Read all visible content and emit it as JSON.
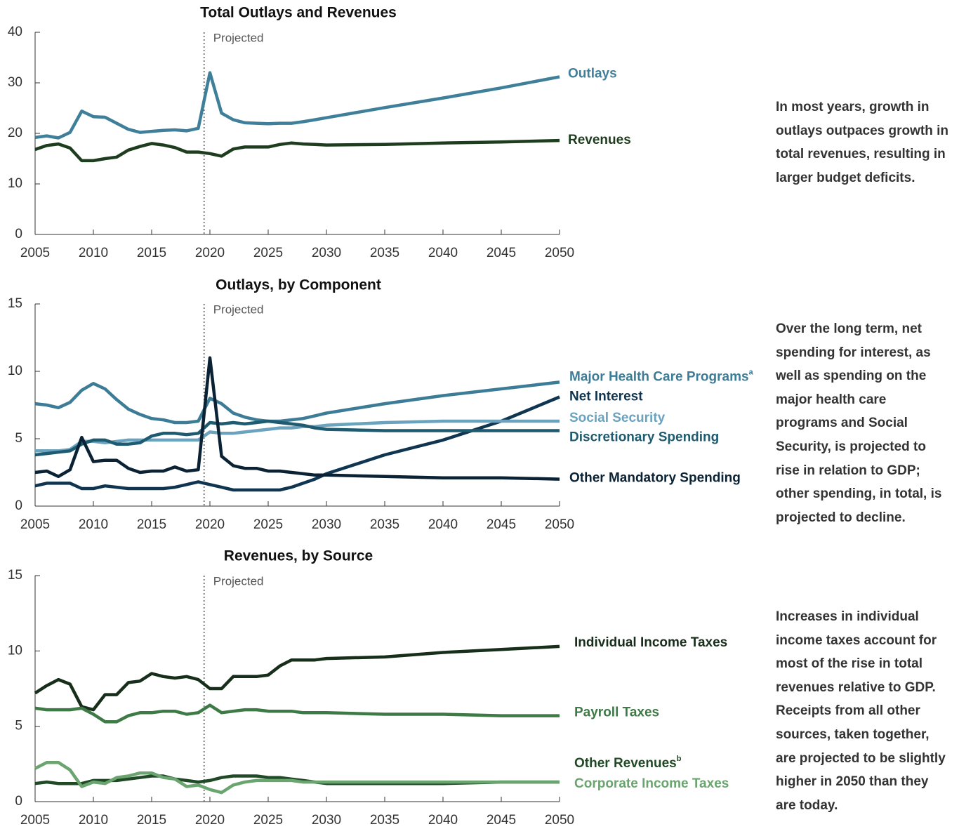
{
  "chart_data": [
    {
      "type": "line",
      "title": "Total Outlays and Revenues",
      "annotation": "Projected",
      "projected_x": 2019.5,
      "note": "In most years, growth in outlays outpaces growth in total revenues, resulting in larger budget deficits.",
      "x": [
        2005,
        2006,
        2007,
        2008,
        2009,
        2010,
        2011,
        2012,
        2013,
        2014,
        2015,
        2016,
        2017,
        2018,
        2019,
        2020,
        2021,
        2022,
        2023,
        2024,
        2025,
        2026,
        2027,
        2028,
        2029,
        2030,
        2035,
        2040,
        2045,
        2050
      ],
      "xlim": [
        2005,
        2050
      ],
      "xticks": [
        2005,
        2010,
        2015,
        2020,
        2025,
        2030,
        2035,
        2040,
        2045,
        2050
      ],
      "ylim": [
        0,
        40
      ],
      "yticks": [
        0,
        10,
        20,
        30,
        40
      ],
      "series": [
        {
          "name": "Outlays",
          "color": "#3f7f99",
          "values": [
            19.2,
            19.5,
            19.1,
            20.2,
            24.4,
            23.3,
            23.2,
            22.0,
            20.8,
            20.2,
            20.4,
            20.6,
            20.7,
            20.5,
            21.0,
            32.0,
            24.0,
            22.7,
            22.1,
            22.0,
            21.9,
            22.0,
            22.0,
            22.3,
            22.7,
            23.1,
            25.1,
            27.0,
            29.0,
            31.2
          ]
        },
        {
          "name": "Revenues",
          "color": "#1e3d1e",
          "values": [
            16.8,
            17.6,
            17.9,
            17.1,
            14.6,
            14.6,
            15.0,
            15.3,
            16.7,
            17.4,
            18.0,
            17.7,
            17.2,
            16.3,
            16.3,
            16.0,
            15.5,
            16.9,
            17.3,
            17.3,
            17.3,
            17.8,
            18.1,
            17.9,
            17.8,
            17.7,
            17.8,
            18.1,
            18.3,
            18.6
          ]
        }
      ]
    },
    {
      "type": "line",
      "title": "Outlays, by Component",
      "annotation": "Projected",
      "projected_x": 2019.5,
      "note": "Over the long term, net spending for interest, as well as spending on the major health care programs and Social Security, is projected to rise in relation to GDP; other spending, in total, is projected to decline.",
      "x": [
        2005,
        2006,
        2007,
        2008,
        2009,
        2010,
        2011,
        2012,
        2013,
        2014,
        2015,
        2016,
        2017,
        2018,
        2019,
        2020,
        2021,
        2022,
        2023,
        2024,
        2025,
        2026,
        2027,
        2028,
        2029,
        2030,
        2035,
        2040,
        2045,
        2050
      ],
      "xlim": [
        2005,
        2050
      ],
      "xticks": [
        2005,
        2010,
        2015,
        2020,
        2025,
        2030,
        2035,
        2040,
        2045,
        2050
      ],
      "ylim": [
        0,
        15
      ],
      "yticks": [
        0,
        5,
        10,
        15
      ],
      "series": [
        {
          "name": "Major Health Care Programs",
          "note_mark": "a",
          "color": "#3d7c96",
          "values": [
            7.6,
            7.5,
            7.3,
            7.7,
            8.6,
            9.1,
            8.7,
            7.9,
            7.2,
            6.8,
            6.5,
            6.4,
            6.2,
            6.2,
            6.3,
            8.0,
            7.6,
            6.9,
            6.6,
            6.4,
            6.3,
            6.3,
            6.4,
            6.5,
            6.7,
            6.9,
            7.6,
            8.2,
            8.7,
            9.2
          ]
        },
        {
          "name": "Net Interest",
          "color": "#0f3550",
          "values": [
            1.5,
            1.7,
            1.7,
            1.7,
            1.3,
            1.3,
            1.5,
            1.4,
            1.3,
            1.3,
            1.3,
            1.3,
            1.4,
            1.6,
            1.8,
            1.6,
            1.4,
            1.2,
            1.2,
            1.2,
            1.2,
            1.2,
            1.4,
            1.7,
            2.0,
            2.4,
            3.8,
            4.9,
            6.3,
            8.1
          ]
        },
        {
          "name": "Social Security",
          "color": "#6ba3bf",
          "values": [
            4.1,
            4.1,
            4.1,
            4.2,
            4.8,
            4.8,
            4.7,
            4.8,
            4.9,
            4.9,
            4.9,
            4.9,
            4.9,
            4.9,
            4.9,
            5.5,
            5.4,
            5.4,
            5.5,
            5.6,
            5.7,
            5.8,
            5.8,
            5.9,
            5.9,
            6.0,
            6.2,
            6.3,
            6.3,
            6.3
          ]
        },
        {
          "name": "Discretionary Spending",
          "color": "#1e5a70",
          "values": [
            3.8,
            3.9,
            4.0,
            4.1,
            4.6,
            4.9,
            4.9,
            4.6,
            4.6,
            4.7,
            5.2,
            5.4,
            5.4,
            5.3,
            5.4,
            6.2,
            6.1,
            6.2,
            6.1,
            6.2,
            6.3,
            6.2,
            6.1,
            6.0,
            5.8,
            5.7,
            5.6,
            5.6,
            5.6,
            5.6
          ]
        },
        {
          "name": "Other Mandatory Spending",
          "color": "#0a2233",
          "values": [
            2.5,
            2.6,
            2.2,
            2.7,
            5.1,
            3.3,
            3.4,
            3.4,
            2.8,
            2.5,
            2.6,
            2.6,
            2.9,
            2.6,
            2.7,
            11.0,
            3.7,
            3.0,
            2.8,
            2.8,
            2.6,
            2.6,
            2.5,
            2.4,
            2.3,
            2.3,
            2.2,
            2.1,
            2.1,
            2.0
          ]
        }
      ]
    },
    {
      "type": "line",
      "title": "Revenues, by Source",
      "annotation": "Projected",
      "projected_x": 2019.5,
      "note": "Increases in individual income taxes account for most of the rise in total revenues relative to GDP. Receipts from all other sources, taken together, are projected to be slightly higher in 2050 than they are today.",
      "x": [
        2005,
        2006,
        2007,
        2008,
        2009,
        2010,
        2011,
        2012,
        2013,
        2014,
        2015,
        2016,
        2017,
        2018,
        2019,
        2020,
        2021,
        2022,
        2023,
        2024,
        2025,
        2026,
        2027,
        2028,
        2029,
        2030,
        2035,
        2040,
        2045,
        2050
      ],
      "xlim": [
        2005,
        2050
      ],
      "xticks": [
        2005,
        2010,
        2015,
        2020,
        2025,
        2030,
        2035,
        2040,
        2045,
        2050
      ],
      "ylim": [
        0,
        15
      ],
      "yticks": [
        0,
        5,
        10,
        15
      ],
      "series": [
        {
          "name": "Individual Income Taxes",
          "color": "#172e1a",
          "values": [
            7.2,
            7.7,
            8.1,
            7.8,
            6.3,
            6.1,
            7.1,
            7.1,
            7.9,
            8.0,
            8.5,
            8.3,
            8.2,
            8.3,
            8.1,
            7.5,
            7.5,
            8.3,
            8.3,
            8.3,
            8.4,
            9.0,
            9.4,
            9.4,
            9.4,
            9.5,
            9.6,
            9.9,
            10.1,
            10.3
          ]
        },
        {
          "name": "Payroll Taxes",
          "color": "#3e7a45",
          "values": [
            6.2,
            6.1,
            6.1,
            6.1,
            6.2,
            5.8,
            5.3,
            5.3,
            5.7,
            5.9,
            5.9,
            6.0,
            6.0,
            5.8,
            5.9,
            6.4,
            5.9,
            6.0,
            6.1,
            6.1,
            6.0,
            6.0,
            6.0,
            5.9,
            5.9,
            5.9,
            5.8,
            5.8,
            5.7,
            5.7
          ]
        },
        {
          "name": "Other Revenues",
          "note_mark": "b",
          "color": "#1f4a25",
          "values": [
            1.2,
            1.3,
            1.2,
            1.2,
            1.2,
            1.4,
            1.4,
            1.4,
            1.5,
            1.6,
            1.7,
            1.7,
            1.5,
            1.4,
            1.3,
            1.4,
            1.6,
            1.7,
            1.7,
            1.7,
            1.6,
            1.6,
            1.5,
            1.4,
            1.3,
            1.2,
            1.2,
            1.2,
            1.3,
            1.3
          ]
        },
        {
          "name": "Corporate Income Taxes",
          "color": "#6aa46f",
          "values": [
            2.2,
            2.6,
            2.6,
            2.1,
            1.0,
            1.3,
            1.2,
            1.6,
            1.7,
            1.9,
            1.9,
            1.6,
            1.5,
            1.0,
            1.1,
            0.8,
            0.6,
            1.1,
            1.3,
            1.4,
            1.4,
            1.4,
            1.4,
            1.3,
            1.3,
            1.3,
            1.3,
            1.3,
            1.3,
            1.3
          ]
        }
      ]
    }
  ]
}
